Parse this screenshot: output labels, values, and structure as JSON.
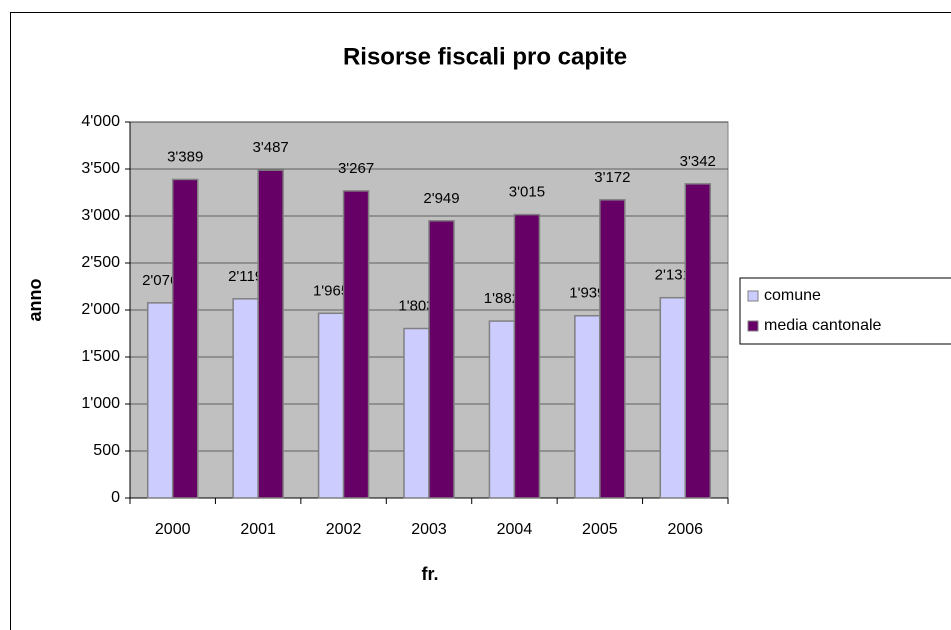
{
  "chart_data": {
    "type": "bar",
    "title": "Risorse fiscali pro capite",
    "x_label": "fr.",
    "y_label": "anno",
    "categories": [
      "2000",
      "2001",
      "2002",
      "2003",
      "2004",
      "2005",
      "2006"
    ],
    "series": [
      {
        "name": "comune",
        "color": "#ccccff",
        "values": [
          2076,
          2119,
          1965,
          1803,
          1882,
          1939,
          2131
        ],
        "value_labels": [
          "2'076",
          "2'119",
          "1'965",
          "1'803",
          "1'882",
          "1'939",
          "2'131"
        ]
      },
      {
        "name": "media cantonale",
        "color": "#660066",
        "values": [
          3389,
          3487,
          3267,
          2949,
          3015,
          3172,
          3342
        ],
        "value_labels": [
          "3'389",
          "3'487",
          "3'267",
          "2'949",
          "3'015",
          "3'172",
          "3'342"
        ]
      }
    ],
    "ylim": [
      0,
      4000
    ],
    "yticks": [
      0,
      500,
      {
        "value": 1000,
        "label": "1'000"
      },
      {
        "value": 1500,
        "label": "1'500"
      },
      {
        "value": 2000,
        "label": "2'000"
      },
      {
        "value": 2500,
        "label": "2'500"
      },
      {
        "value": 3000,
        "label": "3'000"
      },
      {
        "value": 3500,
        "label": "3'500"
      },
      {
        "value": 4000,
        "label": "4'000"
      }
    ],
    "grid": true,
    "legend": "right",
    "plot_background": "#c0c0c0"
  }
}
